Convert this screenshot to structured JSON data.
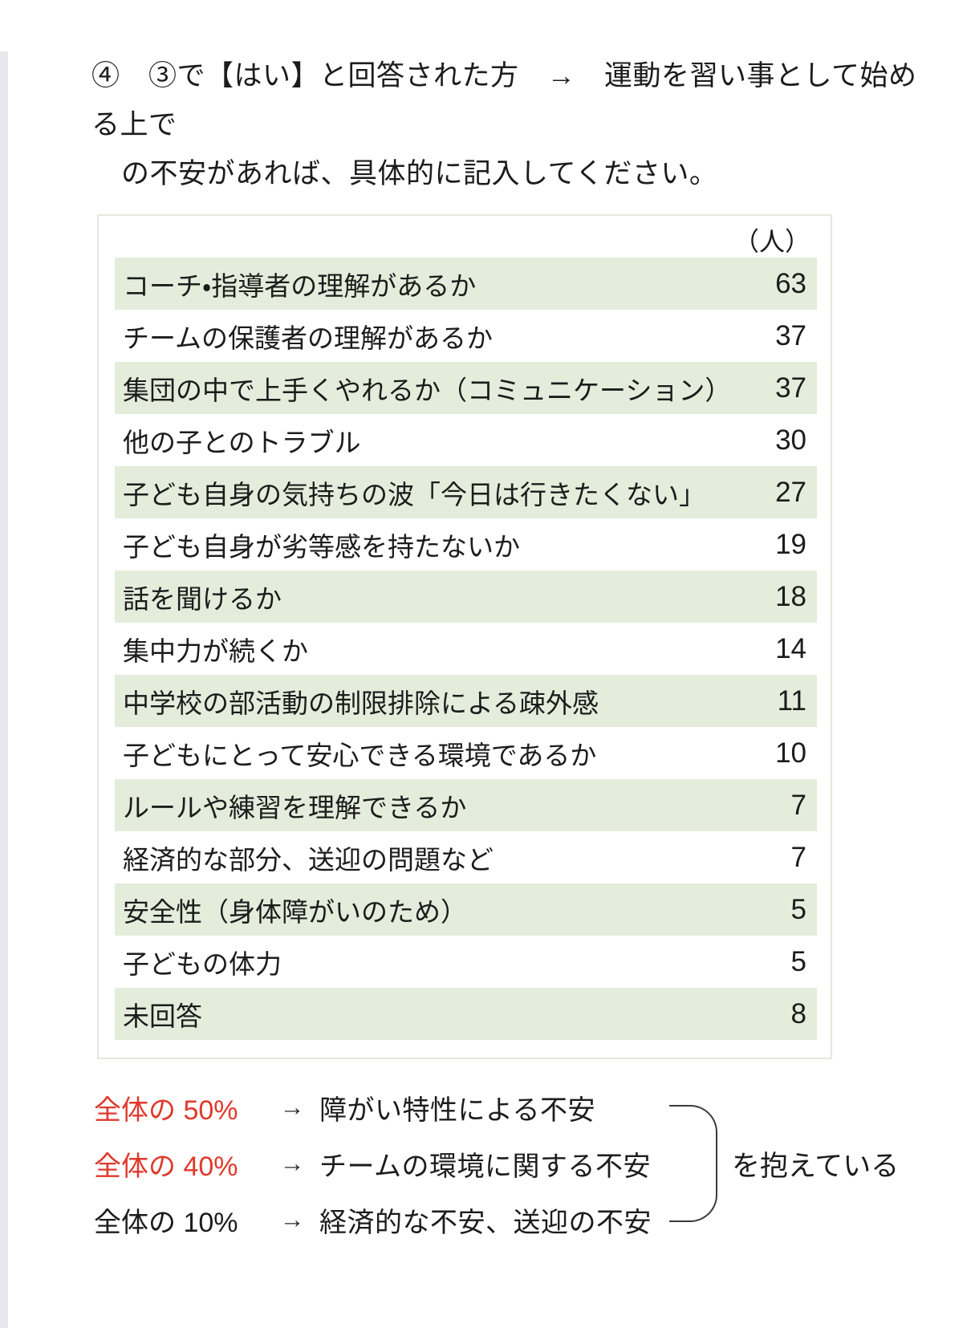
{
  "heading": {
    "line1": "④　③で【はい】と回答された方　→　運動を習い事として始める上で",
    "line2": "の不安があれば、具体的に記入してください。"
  },
  "table": {
    "unit_header": "（人）",
    "rows": [
      {
        "label": "コーチ・指導者の理解があるか",
        "value": "63"
      },
      {
        "label": "チームの保護者の理解があるか",
        "value": "37"
      },
      {
        "label": "集団の中で上手くやれるか（コミュニケーション）",
        "value": "37"
      },
      {
        "label": "他の子とのトラブル",
        "value": "30"
      },
      {
        "label": "子ども自身の気持ちの波「今日は行きたくない」",
        "value": "27"
      },
      {
        "label": "子ども自身が劣等感を持たないか",
        "value": "19"
      },
      {
        "label": "話を聞けるか",
        "value": "18"
      },
      {
        "label": "集中力が続くか",
        "value": "14"
      },
      {
        "label": "中学校の部活動の制限排除による疎外感",
        "value": "11"
      },
      {
        "label": "子どもにとって安心できる環境であるか",
        "value": "10"
      },
      {
        "label": "ルールや練習を理解できるか",
        "value": "7"
      },
      {
        "label": "経済的な部分、送迎の問題など",
        "value": "7"
      },
      {
        "label": "安全性（身体障がいのため）",
        "value": "5"
      },
      {
        "label": "子どもの体力",
        "value": "5"
      },
      {
        "label": "未回答",
        "value": "8"
      }
    ]
  },
  "summary": {
    "lines": [
      {
        "portion": "全体の 50%",
        "arrow": "→",
        "text": "障がい特性による不安",
        "highlight": true
      },
      {
        "portion": "全体の 40%",
        "arrow": "→",
        "text": "チームの環境に関する不安",
        "highlight": true
      },
      {
        "portion": "全体の 10%",
        "arrow": "→",
        "text": "経済的な不安、送迎の不安",
        "highlight": false
      }
    ],
    "conclusion": "を抱えている"
  },
  "colors": {
    "row_green": "#e4eddb",
    "highlight_red": "#e0392c",
    "table_border": "#e4e8dd",
    "left_strip": "#e8e8ec"
  }
}
